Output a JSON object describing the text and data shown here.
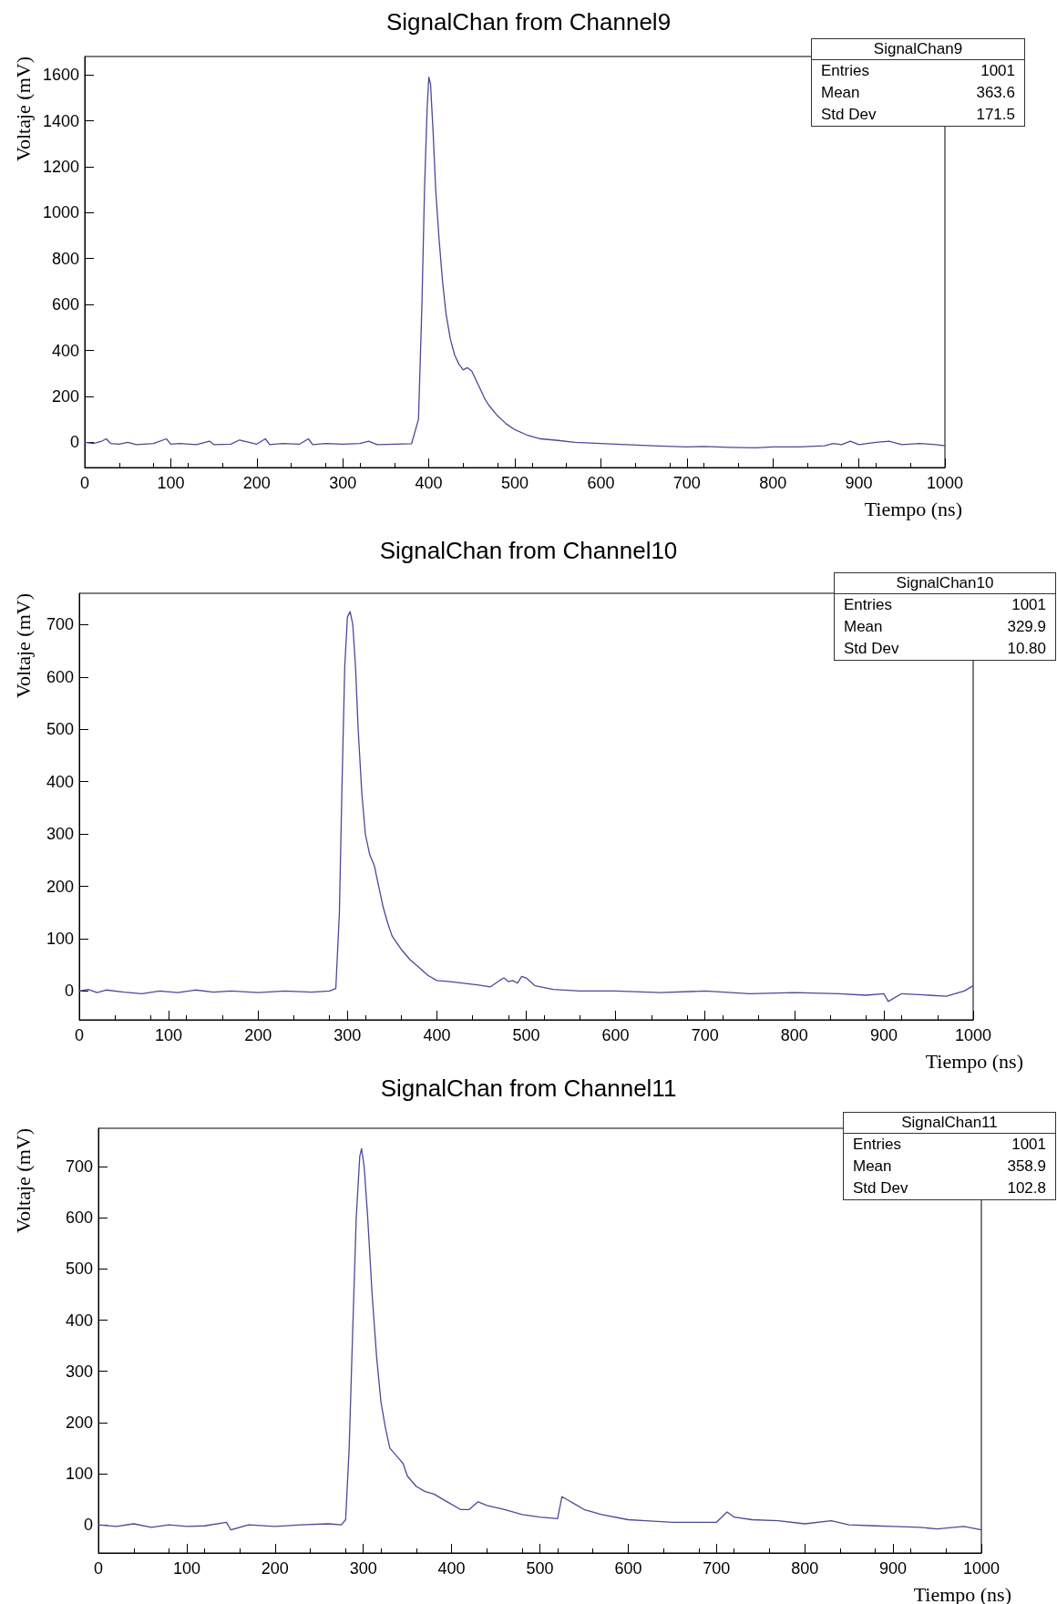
{
  "chart_data": [
    {
      "type": "line",
      "title": "SignalChan from Channel9",
      "xlabel": "Tiempo (ns)",
      "ylabel": "Voltaje (mV)",
      "color": "#4a4a98",
      "marker": "none",
      "grid": false,
      "xlim": [
        0,
        1000
      ],
      "xticks": [
        0,
        100,
        200,
        300,
        400,
        500,
        600,
        700,
        800,
        900,
        1000
      ],
      "ylim": [
        -110,
        1680
      ],
      "yticks": [
        0,
        200,
        400,
        600,
        800,
        1000,
        1200,
        1400,
        1600
      ],
      "annotations": [
        "SignalChan9",
        "Entries",
        "1001",
        "Mean",
        "363.6",
        "Std Dev",
        "171.5"
      ],
      "x": [
        0,
        10,
        20,
        25,
        30,
        40,
        50,
        60,
        80,
        95,
        100,
        110,
        130,
        145,
        150,
        170,
        180,
        200,
        210,
        215,
        230,
        250,
        260,
        265,
        280,
        300,
        320,
        330,
        340,
        360,
        380,
        388,
        392,
        395,
        398,
        400,
        402,
        405,
        408,
        412,
        416,
        420,
        425,
        430,
        435,
        440,
        445,
        450,
        455,
        460,
        465,
        470,
        480,
        490,
        500,
        515,
        530,
        550,
        570,
        600,
        630,
        660,
        700,
        720,
        750,
        780,
        800,
        830,
        860,
        870,
        880,
        890,
        900,
        920,
        935,
        950,
        970,
        990,
        1000
      ],
      "values": [
        0,
        -5,
        5,
        15,
        -5,
        -8,
        0,
        -10,
        -5,
        15,
        -8,
        -5,
        -10,
        5,
        -10,
        -8,
        10,
        -8,
        15,
        -10,
        -5,
        -8,
        15,
        -10,
        -5,
        -8,
        -5,
        5,
        -10,
        -8,
        -6,
        100,
        600,
        1100,
        1450,
        1590,
        1560,
        1350,
        1100,
        880,
        700,
        560,
        450,
        380,
        340,
        315,
        325,
        310,
        270,
        230,
        190,
        160,
        115,
        80,
        55,
        30,
        15,
        8,
        0,
        -5,
        -10,
        -15,
        -20,
        -18,
        -22,
        -24,
        -20,
        -20,
        -15,
        -5,
        -10,
        5,
        -10,
        0,
        5,
        -10,
        -5,
        -10,
        -15
      ]
    },
    {
      "type": "line",
      "title": "SignalChan from Channel10",
      "xlabel": "Tiempo (ns)",
      "ylabel": "Voltaje (mV)",
      "color": "#4a4a98",
      "marker": "none",
      "grid": false,
      "xlim": [
        0,
        1000
      ],
      "xticks": [
        0,
        100,
        200,
        300,
        400,
        500,
        600,
        700,
        800,
        900,
        1000
      ],
      "ylim": [
        -55,
        760
      ],
      "yticks": [
        0,
        100,
        200,
        300,
        400,
        500,
        600,
        700
      ],
      "annotations": [
        "SignalChan10",
        "Entries",
        "1001",
        "Mean",
        "329.9",
        "Std Dev",
        "10.80"
      ],
      "x": [
        0,
        10,
        20,
        30,
        50,
        70,
        90,
        110,
        130,
        150,
        170,
        200,
        230,
        260,
        280,
        287,
        291,
        294,
        297,
        300,
        303,
        306,
        309,
        312,
        316,
        320,
        325,
        330,
        335,
        340,
        345,
        350,
        360,
        370,
        380,
        390,
        400,
        415,
        430,
        445,
        460,
        470,
        475,
        480,
        485,
        490,
        495,
        500,
        510,
        530,
        560,
        600,
        650,
        700,
        750,
        800,
        850,
        880,
        900,
        905,
        920,
        950,
        970,
        990,
        1000
      ],
      "values": [
        0,
        3,
        -3,
        2,
        -2,
        -5,
        0,
        -3,
        2,
        -2,
        0,
        -3,
        0,
        -2,
        0,
        5,
        150,
        400,
        620,
        715,
        725,
        700,
        620,
        500,
        380,
        300,
        260,
        240,
        200,
        160,
        130,
        105,
        80,
        60,
        45,
        30,
        20,
        18,
        15,
        12,
        8,
        20,
        25,
        18,
        20,
        15,
        28,
        25,
        10,
        3,
        0,
        0,
        -3,
        0,
        -5,
        -3,
        -5,
        -8,
        -5,
        -20,
        -5,
        -8,
        -10,
        0,
        10
      ]
    },
    {
      "type": "line",
      "title": "SignalChan from Channel11",
      "xlabel": "Tiempo (ns)",
      "ylabel": "Voltaje (mV)",
      "color": "#4a4a98",
      "marker": "none",
      "grid": false,
      "xlim": [
        0,
        1000
      ],
      "xticks": [
        0,
        100,
        200,
        300,
        400,
        500,
        600,
        700,
        800,
        900,
        1000
      ],
      "ylim": [
        -55,
        775
      ],
      "yticks": [
        0,
        100,
        200,
        300,
        400,
        500,
        600,
        700
      ],
      "annotations": [
        "SignalChan11",
        "Entries",
        "1001",
        "Mean",
        "358.9",
        "Std Dev",
        "102.8"
      ],
      "x": [
        0,
        20,
        40,
        60,
        80,
        100,
        120,
        145,
        150,
        170,
        200,
        230,
        260,
        275,
        280,
        284,
        288,
        292,
        296,
        298,
        301,
        305,
        310,
        315,
        320,
        325,
        330,
        340,
        345,
        350,
        360,
        370,
        380,
        395,
        410,
        420,
        430,
        440,
        460,
        480,
        500,
        520,
        525,
        530,
        540,
        550,
        570,
        600,
        620,
        650,
        680,
        700,
        712,
        720,
        740,
        770,
        800,
        830,
        850,
        880,
        900,
        930,
        950,
        980,
        1000
      ],
      "values": [
        0,
        -3,
        2,
        -5,
        0,
        -3,
        -2,
        5,
        -10,
        0,
        -3,
        0,
        2,
        0,
        10,
        150,
        380,
        600,
        720,
        735,
        700,
        600,
        450,
        330,
        240,
        190,
        150,
        130,
        120,
        95,
        75,
        65,
        60,
        45,
        30,
        30,
        45,
        38,
        30,
        20,
        15,
        12,
        55,
        50,
        40,
        30,
        20,
        10,
        8,
        5,
        5,
        5,
        25,
        15,
        10,
        8,
        2,
        8,
        0,
        -2,
        -3,
        -5,
        -8,
        -3,
        -10
      ]
    }
  ]
}
